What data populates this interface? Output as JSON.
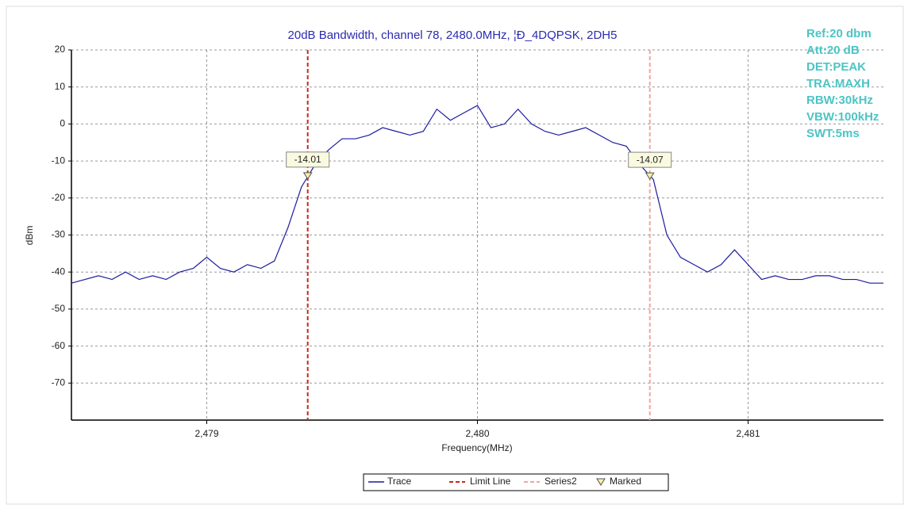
{
  "chart_data": {
    "type": "line",
    "title": "20dB Bandwidth, channel 78, 2480.0MHz, ¦Ð_4DQPSK, 2DH5",
    "x_label": "Frequency(MHz)",
    "y_label": "dBm",
    "xlim": [
      2478.5,
      2481.5
    ],
    "ylim": [
      -80,
      20
    ],
    "xticks": [
      {
        "value": 2479,
        "label": "2,479"
      },
      {
        "value": 2480,
        "label": "2,480"
      },
      {
        "value": 2481,
        "label": "2,481"
      }
    ],
    "yticks": [
      20,
      10,
      0,
      -10,
      -20,
      -30,
      -40,
      -50,
      -60,
      -70
    ],
    "grid": true,
    "series": [
      {
        "name": "Trace",
        "color": "#1c1c9c",
        "x": [
          2478.5,
          2478.55,
          2478.6,
          2478.65,
          2478.7,
          2478.75,
          2478.8,
          2478.85,
          2478.9,
          2478.95,
          2479.0,
          2479.05,
          2479.1,
          2479.15,
          2479.2,
          2479.25,
          2479.3,
          2479.35,
          2479.4,
          2479.45,
          2479.5,
          2479.55,
          2479.6,
          2479.65,
          2479.7,
          2479.75,
          2479.8,
          2479.85,
          2479.9,
          2479.95,
          2480.0,
          2480.05,
          2480.1,
          2480.15,
          2480.2,
          2480.25,
          2480.3,
          2480.35,
          2480.4,
          2480.45,
          2480.5,
          2480.55,
          2480.6,
          2480.65,
          2480.7,
          2480.75,
          2480.8,
          2480.85,
          2480.9,
          2480.95,
          2481.0,
          2481.05,
          2481.1,
          2481.15,
          2481.2,
          2481.25,
          2481.3,
          2481.35,
          2481.4,
          2481.45,
          2481.5
        ],
        "values": [
          -43,
          -42,
          -41,
          -42,
          -40,
          -42,
          -41,
          -42,
          -40,
          -39,
          -36,
          -39,
          -40,
          -38,
          -39,
          -37,
          -28,
          -17,
          -11,
          -7,
          -4,
          -4,
          -3,
          -1,
          -2,
          -3,
          -2,
          4,
          1,
          3,
          5,
          -1,
          0,
          4,
          0,
          -2,
          -3,
          -2,
          -1,
          -3,
          -5,
          -6,
          -11,
          -15,
          -30,
          -36,
          -38,
          -40,
          -38,
          -34,
          -38,
          -42,
          -41,
          -42,
          -42,
          -41,
          -41,
          -42,
          -42,
          -43,
          -43
        ]
      }
    ],
    "vlines": [
      {
        "name": "Limit Line",
        "color": "#c8281e",
        "x": 2479.373
      },
      {
        "name": "Series2",
        "color": "#f2a4a4",
        "x": 2480.637
      }
    ],
    "markers": {
      "name": "Marked",
      "color": "#f6f2a0",
      "x": [
        2479.373,
        2480.637
      ],
      "values": [
        -14.01,
        -14.07
      ]
    },
    "settings": [
      "Ref:20 dbm",
      "Att:20 dB",
      "DET:PEAK",
      "TRA:MAXH",
      "RBW:30kHz",
      "VBW:100kHz",
      "SWT:5ms"
    ]
  }
}
